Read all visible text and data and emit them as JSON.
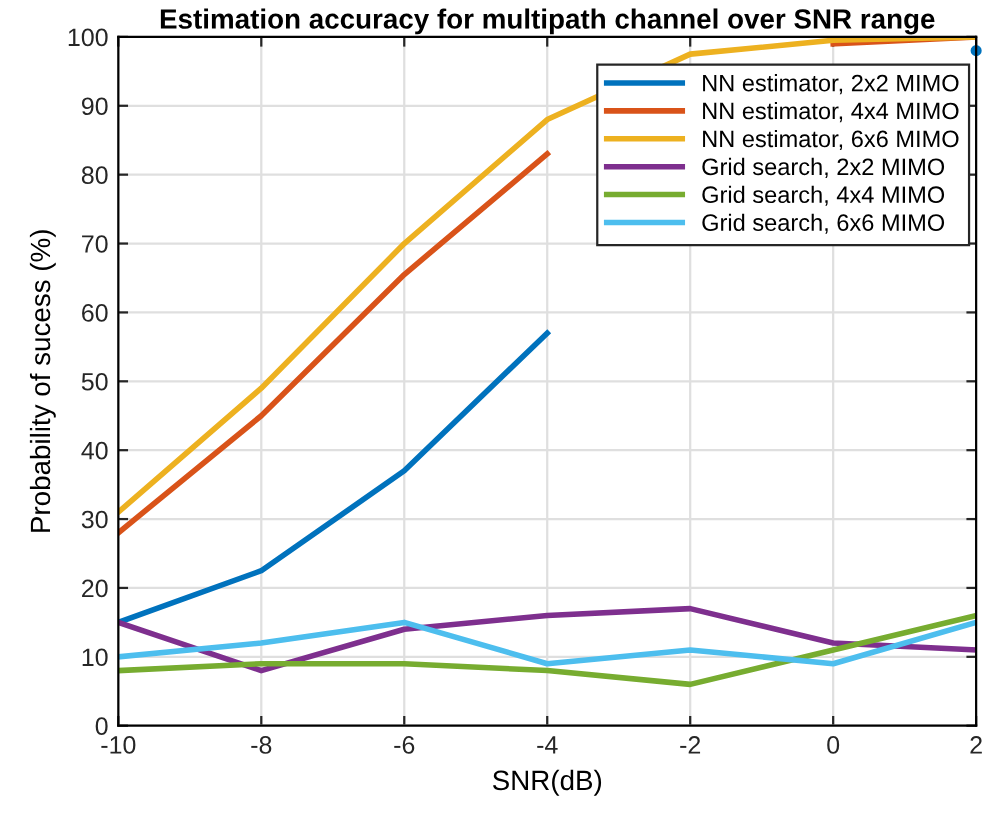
{
  "chart_data": {
    "type": "line",
    "title": "Estimation accuracy for multipath channel over SNR range",
    "xlabel": "SNR(dB)",
    "ylabel": "Probability of sucess (%)",
    "x": [
      -10,
      -8,
      -6,
      -4,
      -2,
      0,
      2
    ],
    "series": [
      {
        "name": "NN estimator, 2x2 MIMO",
        "color": "#0072bd",
        "values": [
          15,
          22.5,
          37,
          57,
          null,
          null,
          98
        ]
      },
      {
        "name": "NN estimator, 4x4 MIMO",
        "color": "#d95319",
        "values": [
          28,
          45,
          65.5,
          83,
          null,
          99,
          100
        ]
      },
      {
        "name": "NN estimator, 6x6 MIMO",
        "color": "#edb120",
        "values": [
          31,
          49,
          70,
          88,
          97.5,
          99.5,
          100
        ]
      },
      {
        "name": "Grid search, 2x2 MIMO",
        "color": "#7e2f8e",
        "values": [
          15,
          8,
          14,
          16,
          17,
          12,
          11
        ]
      },
      {
        "name": "Grid search, 4x4 MIMO",
        "color": "#77ac30",
        "values": [
          8,
          9,
          9,
          8,
          6,
          11,
          16
        ]
      },
      {
        "name": "Grid search, 6x6 MIMO",
        "color": "#4dbeee",
        "values": [
          10,
          12,
          15,
          9,
          11,
          9,
          15
        ]
      }
    ],
    "xlim": [
      -10,
      2
    ],
    "xticks": [
      -10,
      -8,
      -6,
      -4,
      -2,
      0,
      2
    ],
    "ylim": [
      0,
      100
    ],
    "yticks": [
      0,
      10,
      20,
      30,
      40,
      50,
      60,
      70,
      80,
      90,
      100
    ],
    "grid": true,
    "legend": "top right",
    "marker": "none",
    "line_style": "solid"
  }
}
